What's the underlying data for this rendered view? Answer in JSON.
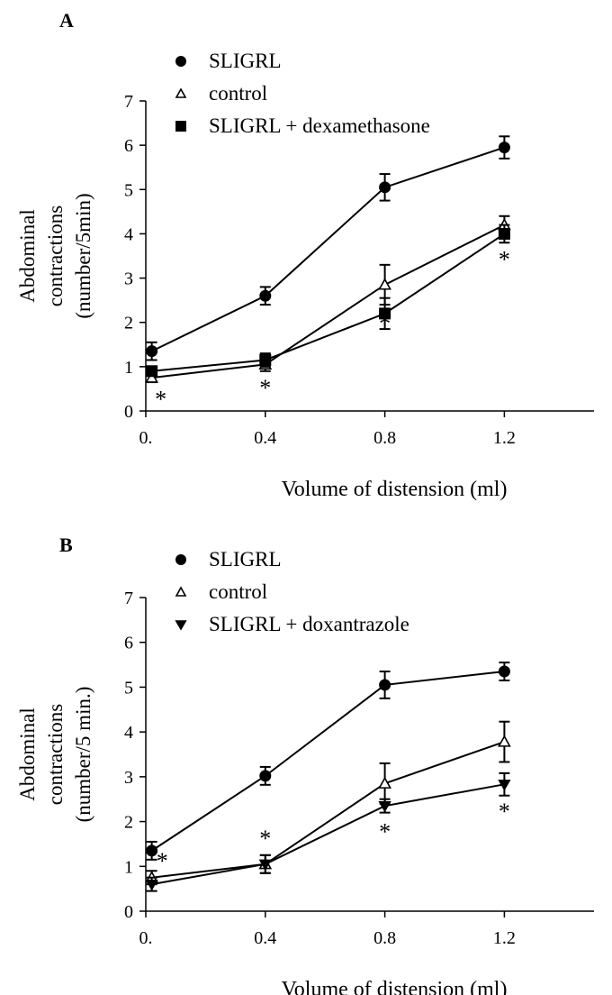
{
  "chart_data": [
    {
      "panel": "A",
      "type": "line",
      "xlabel": "Volume of distension (ml)",
      "ylabel_line1": "Abdominal",
      "ylabel_line2": "contractions",
      "ylabel_line3": "(number/5min)",
      "xlim": [
        0,
        1.5
      ],
      "ylim": [
        0,
        7
      ],
      "xticks": [
        0,
        0.4,
        0.8,
        1.2
      ],
      "xtick_labels": [
        "0.",
        "0.4",
        "0.8",
        "1.2"
      ],
      "yticks": [
        0,
        1,
        2,
        3,
        4,
        5,
        6,
        7
      ],
      "ytick_labels": [
        "0",
        "1",
        "2",
        "3",
        "4",
        "5",
        "6",
        "7"
      ],
      "legend_position": "top-left",
      "grid": false,
      "series": [
        {
          "name": "SLIGRL",
          "marker": "circle",
          "x": [
            0.02,
            0.4,
            0.8,
            1.2
          ],
          "y": [
            1.35,
            2.6,
            5.05,
            5.95
          ],
          "err": [
            0.2,
            0.2,
            0.3,
            0.25
          ]
        },
        {
          "name": "control",
          "marker": "triangle-up-open",
          "x": [
            0.02,
            0.4,
            0.8,
            1.2
          ],
          "y": [
            0.75,
            1.05,
            2.85,
            4.2
          ],
          "err": [
            0.1,
            0.15,
            0.45,
            0.2
          ]
        },
        {
          "name": "SLIGRL + dexamethasone",
          "marker": "square",
          "x": [
            0.02,
            0.4,
            0.8,
            1.2
          ],
          "y": [
            0.9,
            1.15,
            2.2,
            4.0
          ],
          "err": [
            0.1,
            0.15,
            0.35,
            0.2
          ]
        }
      ],
      "annotations": [
        {
          "text": "*",
          "x": 0.05,
          "y": 0.3
        },
        {
          "text": "*",
          "x": 0.4,
          "y": 0.55
        },
        {
          "text": "*",
          "x": 0.8,
          "y": 2.0
        },
        {
          "text": "*",
          "x": 1.2,
          "y": 3.45
        }
      ]
    },
    {
      "panel": "B",
      "type": "line",
      "xlabel": "Volume of distension (ml)",
      "ylabel_line1": "Abdominal",
      "ylabel_line2": "contractions",
      "ylabel_line3": "(number/5 min.)",
      "xlim": [
        0,
        1.5
      ],
      "ylim": [
        0,
        7
      ],
      "xticks": [
        0,
        0.4,
        0.8,
        1.2
      ],
      "xtick_labels": [
        "0.",
        "0.4",
        "0.8",
        "1.2"
      ],
      "yticks": [
        0,
        1,
        2,
        3,
        4,
        5,
        6,
        7
      ],
      "ytick_labels": [
        "0",
        "1",
        "2",
        "3",
        "4",
        "5",
        "6",
        "7"
      ],
      "legend_position": "top-left",
      "grid": false,
      "series": [
        {
          "name": "SLIGRL",
          "marker": "circle",
          "x": [
            0.02,
            0.4,
            0.8,
            1.2
          ],
          "y": [
            1.35,
            3.02,
            5.05,
            5.35
          ],
          "err": [
            0.2,
            0.2,
            0.3,
            0.2
          ]
        },
        {
          "name": "control",
          "marker": "triangle-up-open",
          "x": [
            0.02,
            0.4,
            0.8,
            1.2
          ],
          "y": [
            0.75,
            1.05,
            2.85,
            3.78
          ],
          "err": [
            0.15,
            0.2,
            0.45,
            0.45
          ]
        },
        {
          "name": "SLIGRL + doxantrazole",
          "marker": "triangle-down",
          "x": [
            0.02,
            0.4,
            0.8,
            1.2
          ],
          "y": [
            0.6,
            1.05,
            2.35,
            2.83
          ],
          "err": [
            0.15,
            0.2,
            0.15,
            0.25
          ]
        }
      ],
      "annotations": [
        {
          "text": "*",
          "x": 0.055,
          "y": 1.15
        },
        {
          "text": "*",
          "x": 0.4,
          "y": 1.65
        },
        {
          "text": "*",
          "x": 0.8,
          "y": 1.8
        },
        {
          "text": "*",
          "x": 1.2,
          "y": 2.25
        }
      ]
    }
  ]
}
